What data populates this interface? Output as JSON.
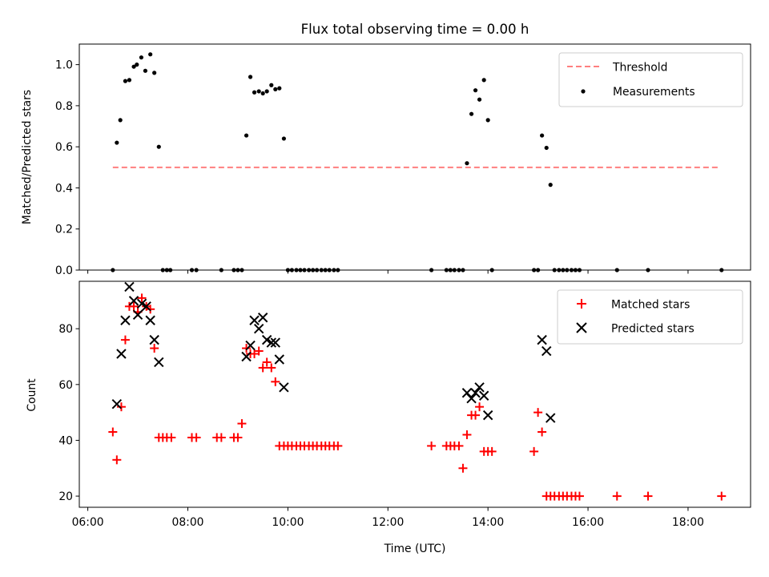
{
  "chart_data": [
    {
      "type": "scatter",
      "title": "Flux total observing time = 0.00 h",
      "xlabel": "",
      "ylabel": "Matched/Predicted stars",
      "xlim": [
        5.83,
        19.25
      ],
      "ylim": [
        0.0,
        1.1
      ],
      "yticks": [
        0.0,
        0.2,
        0.4,
        0.6,
        0.8,
        1.0
      ],
      "ytick_labels": [
        "0.0",
        "0.2",
        "0.4",
        "0.6",
        "0.8",
        "1.0"
      ],
      "xticks": [
        6,
        8,
        10,
        12,
        14,
        16,
        18
      ],
      "xtick_labels": [
        "",
        "",
        "",
        "",
        "",
        "",
        ""
      ],
      "legend_position": "upper right",
      "legend": [
        {
          "label": "Threshold",
          "style": "dashed-line",
          "color": "#ff7f7f"
        },
        {
          "label": "Measurements",
          "style": "dot",
          "color": "#000000"
        }
      ],
      "threshold": {
        "name": "Threshold",
        "y": 0.5,
        "x": [
          6.5,
          18.6
        ],
        "color": "#ff7f7f"
      },
      "series": [
        {
          "name": "Measurements",
          "marker": "dot",
          "color": "#000000",
          "x": [
            6.5,
            6.58,
            6.65,
            6.75,
            6.83,
            6.92,
            6.98,
            7.07,
            7.15,
            7.25,
            7.33,
            7.42,
            7.5,
            7.58,
            7.65,
            8.08,
            8.17,
            8.67,
            8.92,
            9.0,
            9.08,
            9.17,
            9.25,
            9.33,
            9.42,
            9.5,
            9.58,
            9.67,
            9.75,
            9.83,
            9.92,
            10.0,
            10.08,
            10.17,
            10.25,
            10.33,
            10.42,
            10.5,
            10.58,
            10.67,
            10.75,
            10.83,
            10.92,
            11.0,
            12.87,
            13.17,
            13.25,
            13.33,
            13.42,
            13.5,
            13.58,
            13.67,
            13.75,
            13.83,
            13.92,
            14.0,
            14.08,
            14.92,
            15.0,
            15.08,
            15.17,
            15.25,
            15.33,
            15.42,
            15.5,
            15.58,
            15.67,
            15.75,
            15.83,
            16.58,
            17.2,
            18.67
          ],
          "y": [
            0.0,
            0.62,
            0.73,
            0.92,
            0.925,
            0.99,
            1.0,
            1.035,
            0.97,
            1.05,
            0.96,
            0.6,
            0.0,
            0.0,
            0.0,
            0.0,
            0.0,
            0.0,
            0.0,
            0.0,
            0.0,
            0.655,
            0.94,
            0.865,
            0.87,
            0.86,
            0.87,
            0.9,
            0.88,
            0.885,
            0.64,
            0.0,
            0.0,
            0.0,
            0.0,
            0.0,
            0.0,
            0.0,
            0.0,
            0.0,
            0.0,
            0.0,
            0.0,
            0.0,
            0.0,
            0.0,
            0.0,
            0.0,
            0.0,
            0.0,
            0.52,
            0.76,
            0.875,
            0.83,
            0.925,
            0.73,
            0.0,
            0.0,
            0.0,
            0.655,
            0.595,
            0.415,
            0.0,
            0.0,
            0.0,
            0.0,
            0.0,
            0.0,
            0.0,
            0.0,
            0.0,
            0.0
          ]
        }
      ]
    },
    {
      "type": "scatter",
      "title": "",
      "xlabel": "Time (UTC)",
      "ylabel": "Count",
      "xlim": [
        5.83,
        19.25
      ],
      "ylim": [
        16,
        97
      ],
      "yticks": [
        20,
        40,
        60,
        80
      ],
      "ytick_labels": [
        "20",
        "40",
        "60",
        "80"
      ],
      "xticks": [
        6,
        8,
        10,
        12,
        14,
        16,
        18
      ],
      "xtick_labels": [
        "06:00",
        "08:00",
        "10:00",
        "12:00",
        "14:00",
        "16:00",
        "18:00"
      ],
      "legend_position": "upper right",
      "legend": [
        {
          "label": "Matched stars",
          "style": "plus",
          "color": "#ff0000"
        },
        {
          "label": "Predicted stars",
          "style": "x",
          "color": "#000000"
        }
      ],
      "series": [
        {
          "name": "Matched stars",
          "marker": "plus",
          "color": "#ff0000",
          "x": [
            6.5,
            6.58,
            6.67,
            6.75,
            6.83,
            6.92,
            7.0,
            7.08,
            7.17,
            7.25,
            7.33,
            7.42,
            7.5,
            7.58,
            7.67,
            8.08,
            8.17,
            8.58,
            8.67,
            8.92,
            9.0,
            9.08,
            9.17,
            9.25,
            9.33,
            9.42,
            9.5,
            9.58,
            9.67,
            9.75,
            9.83,
            9.92,
            10.0,
            10.08,
            10.17,
            10.25,
            10.33,
            10.42,
            10.5,
            10.58,
            10.67,
            10.75,
            10.83,
            10.92,
            11.0,
            12.87,
            13.17,
            13.25,
            13.33,
            13.42,
            13.5,
            13.58,
            13.67,
            13.75,
            13.83,
            13.92,
            14.0,
            14.08,
            14.92,
            15.0,
            15.08,
            15.17,
            15.25,
            15.33,
            15.42,
            15.5,
            15.58,
            15.67,
            15.75,
            15.83,
            16.58,
            17.2,
            18.67
          ],
          "y": [
            43,
            33,
            52,
            76,
            88,
            88,
            86,
            91,
            88,
            87,
            73,
            41,
            41,
            41,
            41,
            41,
            41,
            41,
            41,
            41,
            41,
            46,
            73,
            71,
            71,
            72,
            66,
            68,
            66,
            61,
            38,
            38,
            38,
            38,
            38,
            38,
            38,
            38,
            38,
            38,
            38,
            38,
            38,
            38,
            38,
            38,
            38,
            38,
            38,
            38,
            30,
            42,
            49,
            49,
            52,
            36,
            36,
            36,
            36,
            50,
            43,
            20,
            20,
            20,
            20,
            20,
            20,
            20,
            20,
            20,
            20,
            20,
            20
          ]
        },
        {
          "name": "Predicted stars",
          "marker": "x",
          "color": "#000000",
          "x": [
            6.58,
            6.67,
            6.75,
            6.83,
            6.92,
            7.0,
            7.08,
            7.17,
            7.25,
            7.33,
            7.42,
            9.17,
            9.25,
            9.33,
            9.42,
            9.5,
            9.58,
            9.67,
            9.75,
            9.83,
            9.92,
            13.58,
            13.67,
            13.75,
            13.83,
            13.92,
            14.0,
            15.08,
            15.17,
            15.25
          ],
          "y": [
            53,
            71,
            83,
            95,
            90,
            85,
            89,
            88,
            83,
            76,
            68,
            70,
            74,
            83,
            80,
            84,
            76,
            75,
            75,
            69,
            59,
            57,
            55,
            57,
            59,
            56,
            49,
            76,
            72,
            48
          ]
        }
      ]
    }
  ]
}
